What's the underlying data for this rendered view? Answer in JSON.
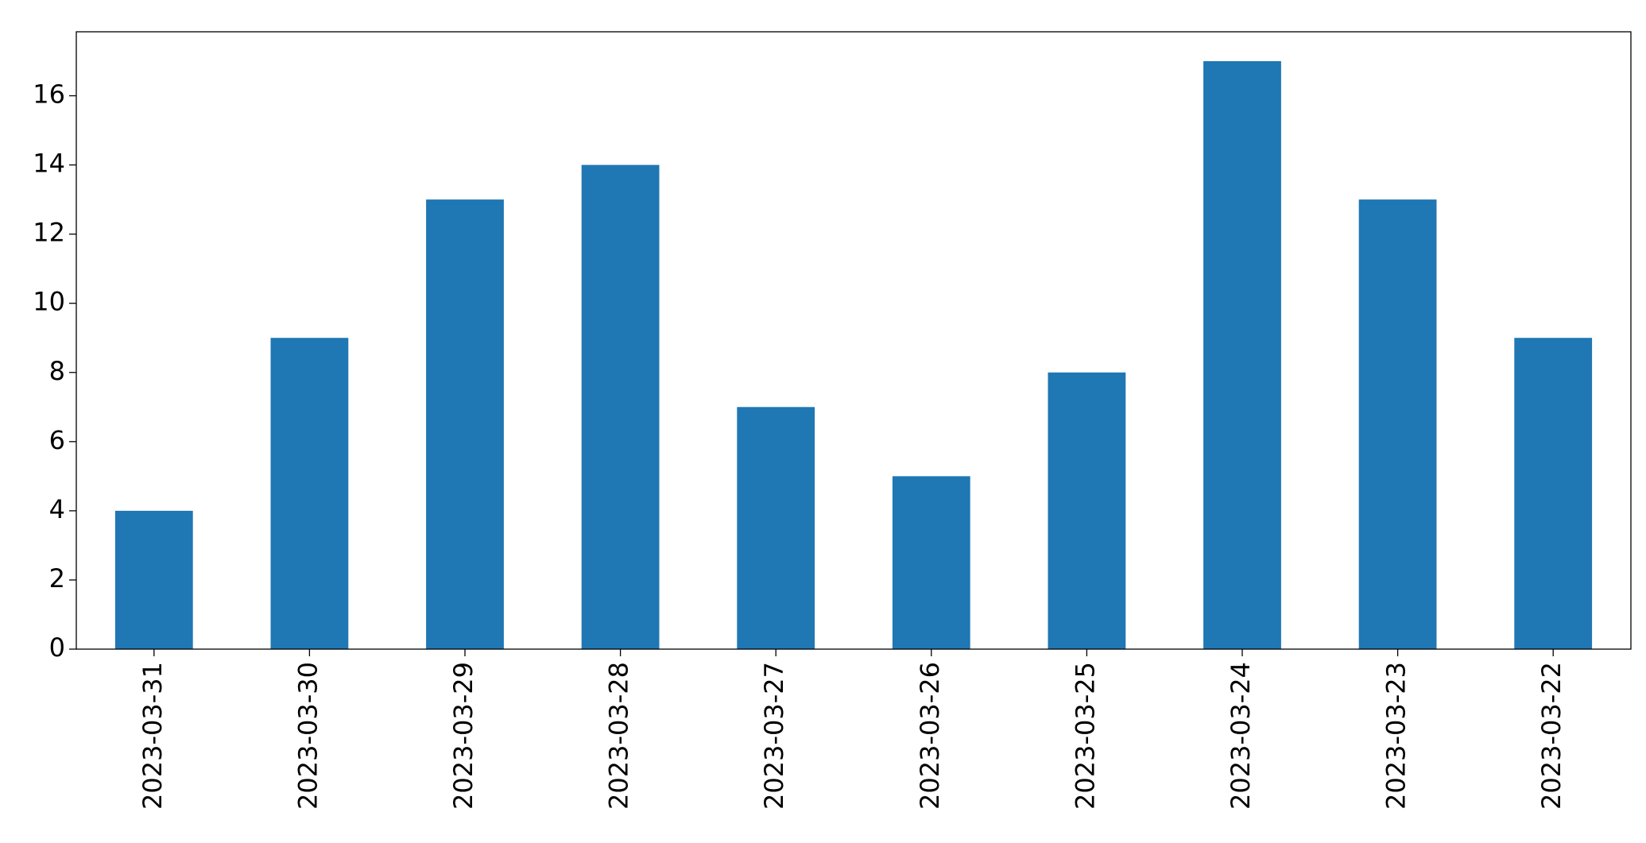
{
  "chart_data": {
    "type": "bar",
    "categories": [
      "2023-03-31",
      "2023-03-30",
      "2023-03-29",
      "2023-03-28",
      "2023-03-27",
      "2023-03-26",
      "2023-03-25",
      "2023-03-24",
      "2023-03-23",
      "2023-03-22"
    ],
    "values": [
      4,
      9,
      13,
      14,
      7,
      5,
      8,
      17,
      13,
      9
    ],
    "color": "#1f77b4",
    "ylim": [
      0,
      17.85
    ],
    "yticks": [
      0,
      2,
      4,
      6,
      8,
      10,
      12,
      14,
      16
    ],
    "grid": false
  }
}
